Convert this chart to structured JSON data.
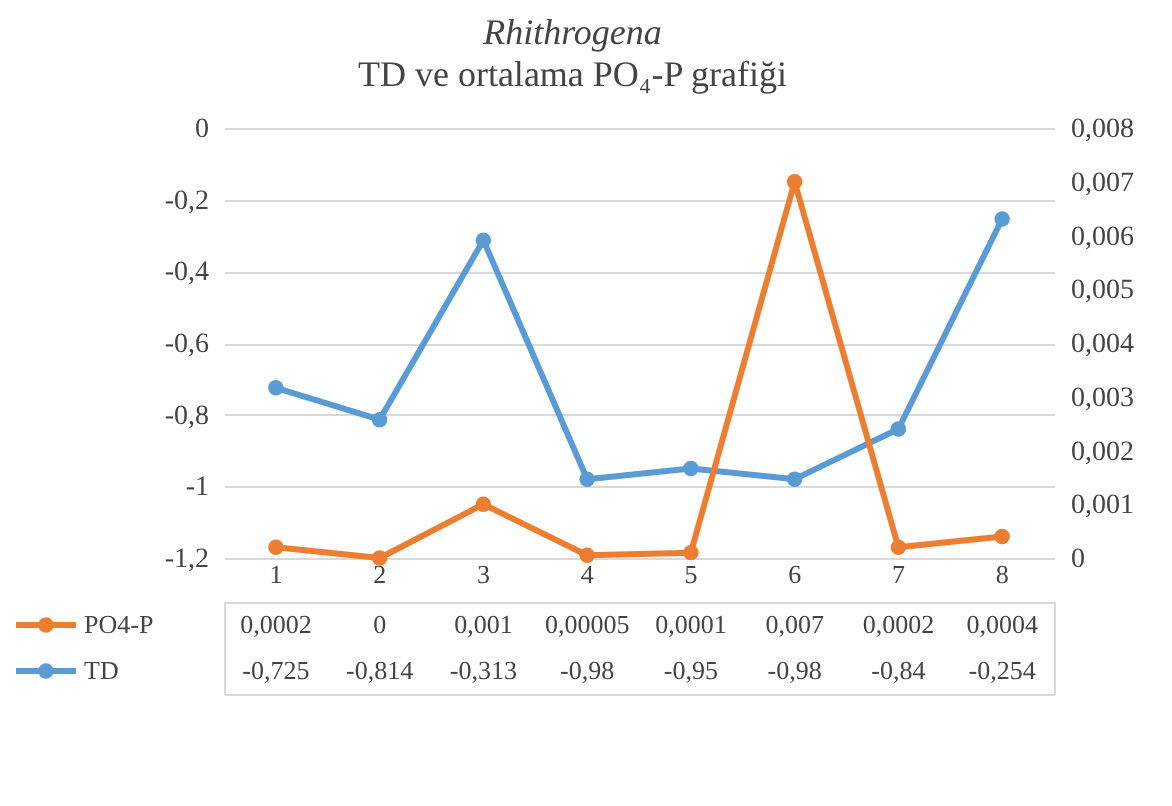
{
  "chart_data": {
    "type": "line",
    "title": "Rhithrogena",
    "subtitle": "TD ve ortalama PO₄-P grafiği",
    "categories": [
      "1",
      "2",
      "3",
      "4",
      "5",
      "6",
      "7",
      "8"
    ],
    "series": [
      {
        "name": "PO4-P",
        "color": "#ed7d31",
        "axis": "y2",
        "values": [
          0.0002,
          0,
          0.001,
          5e-05,
          0.0001,
          0.007,
          0.0002,
          0.0004
        ],
        "value_labels": [
          "0,0002",
          "0",
          "0,001",
          "0,00005",
          "0,0001",
          "0,007",
          "0,0002",
          "0,0004"
        ]
      },
      {
        "name": "TD",
        "color": "#5b9bd5",
        "values": [
          -0.725,
          -0.814,
          -0.313,
          -0.98,
          -0.95,
          -0.98,
          -0.84,
          -0.254
        ],
        "value_labels": [
          "-0,725",
          "-0,814",
          "-0,313",
          "-0,98",
          "-0,95",
          "-0,98",
          "-0,84",
          "-0,254"
        ]
      }
    ],
    "ylim": [
      -1.2,
      0
    ],
    "yticks": [
      {
        "value": -1.2,
        "label": "-1,2"
      },
      -1,
      {
        "value": -0.8,
        "label": "-0,8"
      },
      {
        "value": -0.6,
        "label": "-0,6"
      },
      {
        "value": -0.4,
        "label": "-0,4"
      },
      {
        "value": -0.2,
        "label": "-0,2"
      },
      0
    ],
    "y2lim": [
      0,
      0.008
    ],
    "y2ticks": [
      0,
      {
        "value": 0.001,
        "label": "0,001"
      },
      {
        "value": 0.002,
        "label": "0,002"
      },
      {
        "value": 0.003,
        "label": "0,003"
      },
      {
        "value": 0.004,
        "label": "0,004"
      },
      {
        "value": 0.005,
        "label": "0,005"
      },
      {
        "value": 0.006,
        "label": "0,006"
      },
      {
        "value": 0.007,
        "label": "0,007"
      },
      {
        "value": 0.008,
        "label": "0,008"
      }
    ],
    "grid": "y",
    "legend": "bottom",
    "marker": "circle",
    "line_style": "solid"
  }
}
